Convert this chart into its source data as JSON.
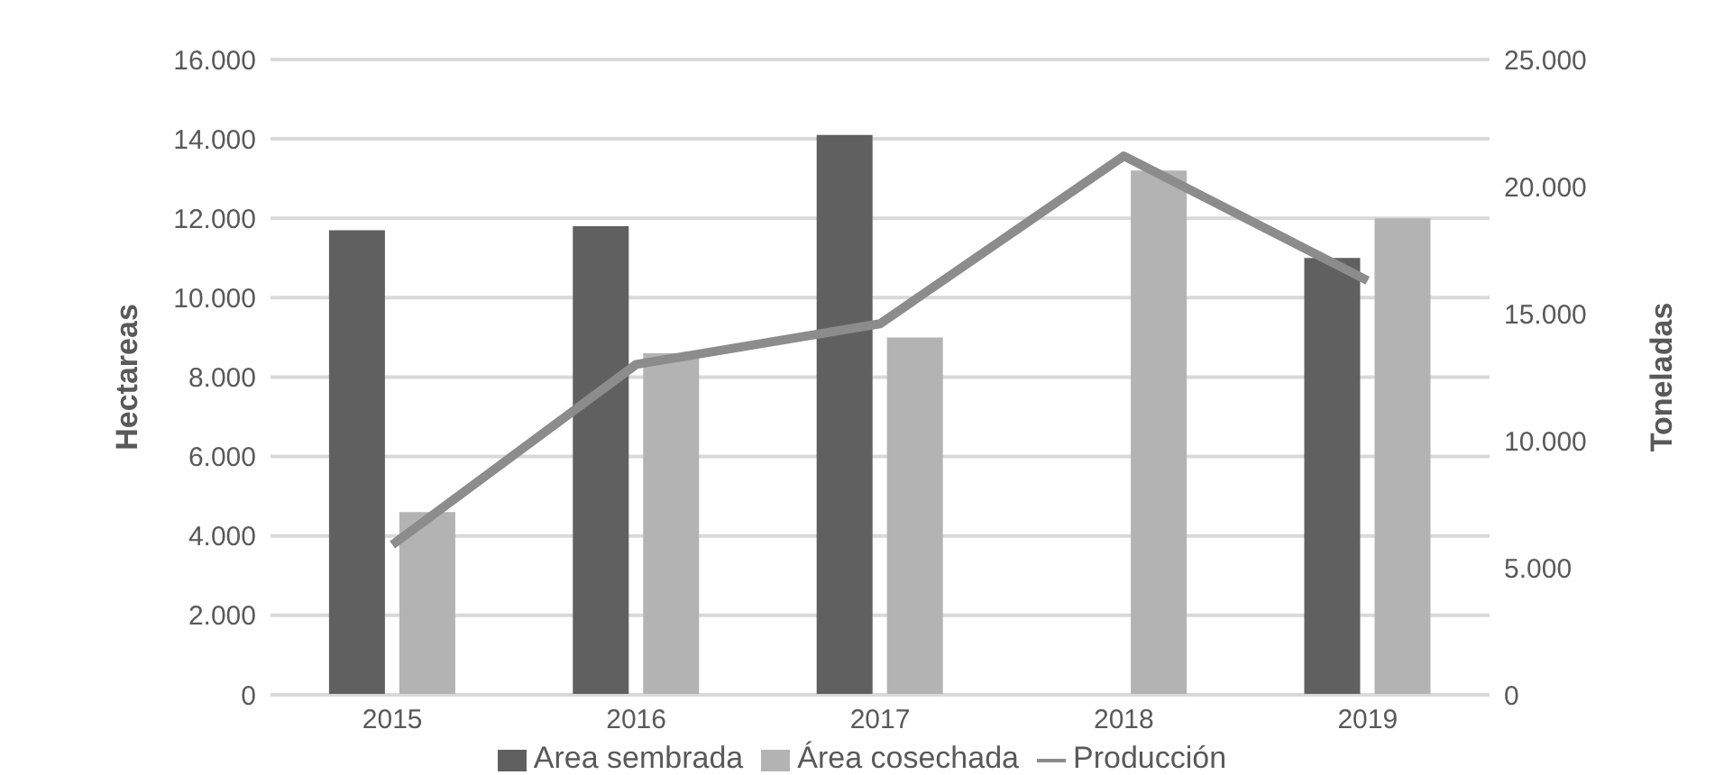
{
  "chart_data": {
    "type": "bar",
    "ylabel": "Hectareas",
    "y2label": "Toneladas",
    "categories": [
      "2015",
      "2016",
      "2017",
      "2018",
      "2019"
    ],
    "series": [
      {
        "name": "Area sembrada",
        "color": "#606060",
        "values": [
          11700,
          11800,
          14100,
          null,
          11000
        ]
      },
      {
        "name": "Área cosechada",
        "color": "#b3b3b3",
        "values": [
          4600,
          8600,
          9000,
          13200,
          12000
        ]
      },
      {
        "name": "Producción",
        "type": "line",
        "axis": "y2",
        "color": "#8c8c8c",
        "values": [
          5900,
          13000,
          14600,
          21200,
          16300
        ]
      }
    ],
    "ylim": [
      0,
      16000
    ],
    "yticks": [
      {
        "value": 0,
        "label": "0"
      },
      {
        "value": 2000,
        "label": "2.000"
      },
      {
        "value": 4000,
        "label": "4.000"
      },
      {
        "value": 6000,
        "label": "6.000"
      },
      {
        "value": 8000,
        "label": "8.000"
      },
      {
        "value": 10000,
        "label": "10.000"
      },
      {
        "value": 12000,
        "label": "12.000"
      },
      {
        "value": 14000,
        "label": "14.000"
      },
      {
        "value": 16000,
        "label": "16.000"
      }
    ],
    "y2lim": [
      0,
      25000
    ],
    "y2ticks": [
      {
        "value": 0,
        "label": "0"
      },
      {
        "value": 5000,
        "label": "5.000"
      },
      {
        "value": 10000,
        "label": "10.000"
      },
      {
        "value": 15000,
        "label": "15.000"
      },
      {
        "value": 20000,
        "label": "20.000"
      },
      {
        "value": 25000,
        "label": "25.000"
      }
    ],
    "grid": "y",
    "legend": "bottom",
    "marker": "none",
    "line_style": "solid"
  }
}
